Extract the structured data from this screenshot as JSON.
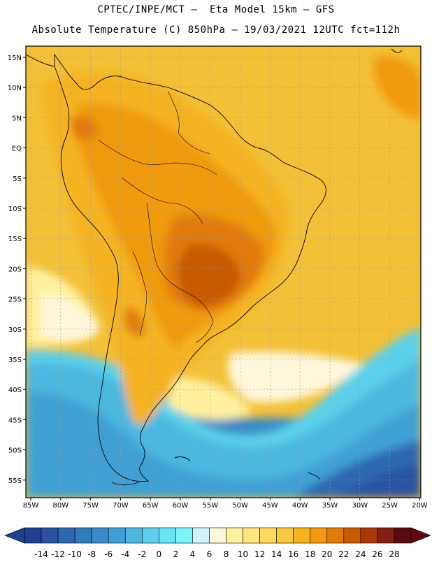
{
  "header": {
    "line1": "CPTEC/INPE/MCT –  Eta Model 15km – GFS",
    "line2": "Absolute Temperature (C) 850hPa – 19/03/2021 12UTC fct=112h"
  },
  "map": {
    "lat_labels": [
      "15N",
      "10N",
      "5N",
      "EQ",
      "5S",
      "10S",
      "15S",
      "20S",
      "25S",
      "30S",
      "35S",
      "40S",
      "45S",
      "50S",
      "55S"
    ],
    "lon_labels": [
      "85W",
      "80W",
      "75W",
      "70W",
      "65W",
      "60W",
      "55W",
      "50W",
      "45W",
      "40W",
      "35W",
      "30W",
      "25W",
      "20W"
    ]
  },
  "colorbar": {
    "labels": [
      "-14",
      "-12",
      "-10",
      "-8",
      "-6",
      "-4",
      "-2",
      "0",
      "2",
      "4",
      "6",
      "8",
      "10",
      "12",
      "14",
      "16",
      "18",
      "20",
      "22",
      "24",
      "26",
      "28"
    ],
    "colors": [
      "#1f3f8f",
      "#2a52a0",
      "#2f66b0",
      "#3478bd",
      "#3a8ac8",
      "#40a0d4",
      "#4cb8e0",
      "#5cd0ea",
      "#6ae4f2",
      "#7cf4fb",
      "#cdf3fb",
      "#fff7dc",
      "#fff0a0",
      "#ffe680",
      "#ffd860",
      "#f8c840",
      "#f5b320",
      "#f09a10",
      "#e07a08",
      "#c85a06",
      "#a83a08",
      "#802010",
      "#5a0a10"
    ]
  }
}
